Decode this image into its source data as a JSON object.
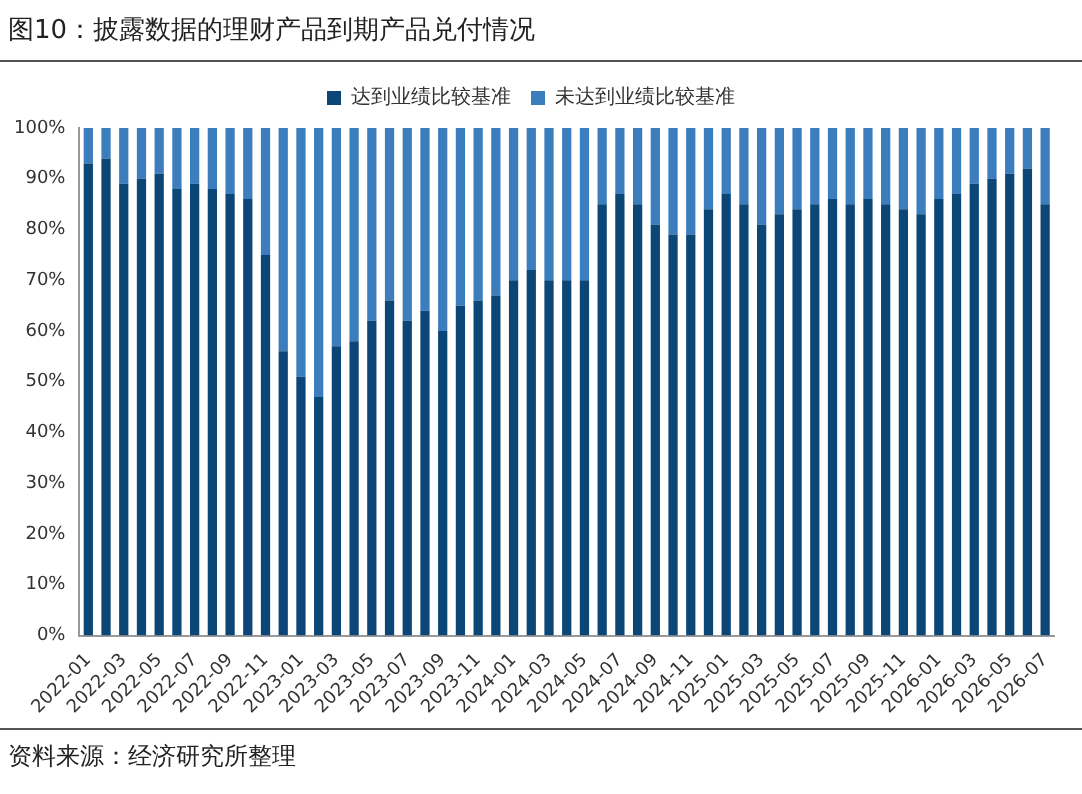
{
  "chart_data": {
    "type": "bar",
    "title": "图10：披露数据的理财产品到期产品兑付情况",
    "categories": [
      "2022-01",
      null,
      "2022-03",
      null,
      "2022-05",
      null,
      "2022-07",
      null,
      "2022-09",
      null,
      "2022-11",
      null,
      "2023-01",
      null,
      "2023-03",
      null,
      "2023-05",
      null,
      "2023-07",
      null,
      "2023-09",
      null,
      "2023-11",
      null,
      "2024-01",
      null,
      "2024-03",
      null,
      "2024-05",
      null,
      "2024-07",
      null,
      "2024-09",
      null,
      "2024-11",
      null,
      "2025-01",
      null,
      "2025-03",
      null,
      "2025-05",
      null,
      "2025-07",
      null,
      "2025-09",
      null,
      "2025-11",
      null,
      "2026-01",
      null,
      "2026-03",
      null,
      "2026-05",
      null,
      "2026-07"
    ],
    "stacked": true,
    "series": [
      {
        "name": "达到业绩比较基准",
        "color": "#0b4677",
        "values": [
          93,
          94,
          89,
          90,
          91,
          88,
          89,
          88,
          87,
          86,
          75,
          56,
          51,
          47,
          57,
          58,
          62,
          66,
          62,
          64,
          60,
          65,
          66,
          67,
          70,
          72,
          70,
          70,
          70,
          85,
          87,
          85,
          81,
          79,
          79,
          84,
          87,
          85,
          81,
          83,
          84,
          85,
          86,
          85,
          86,
          85,
          84,
          83,
          86,
          87,
          89,
          90,
          91,
          92,
          85
        ]
      },
      {
        "name": "未达到业绩比较基准",
        "color": "#3b7dbd",
        "values": [
          7,
          6,
          11,
          10,
          9,
          12,
          11,
          12,
          13,
          14,
          25,
          44,
          49,
          53,
          43,
          42,
          38,
          34,
          38,
          36,
          40,
          35,
          34,
          33,
          30,
          28,
          30,
          30,
          30,
          15,
          13,
          15,
          19,
          21,
          21,
          16,
          13,
          15,
          19,
          17,
          16,
          15,
          14,
          15,
          14,
          15,
          16,
          17,
          14,
          13,
          11,
          10,
          9,
          8,
          15
        ]
      }
    ],
    "ylim": [
      0,
      100
    ],
    "yticks": [
      {
        "value": 0,
        "label": "0%"
      },
      {
        "value": 10,
        "label": "10%"
      },
      {
        "value": 20,
        "label": "20%"
      },
      {
        "value": 30,
        "label": "30%"
      },
      {
        "value": 40,
        "label": "40%"
      },
      {
        "value": 50,
        "label": "50%"
      },
      {
        "value": 60,
        "label": "60%"
      },
      {
        "value": 70,
        "label": "70%"
      },
      {
        "value": 80,
        "label": "80%"
      },
      {
        "value": 90,
        "label": "90%"
      },
      {
        "value": 100,
        "label": "100%"
      }
    ],
    "grid": false,
    "legend": "top",
    "annotations": [
      "资料来源：经济研究所整理"
    ]
  }
}
